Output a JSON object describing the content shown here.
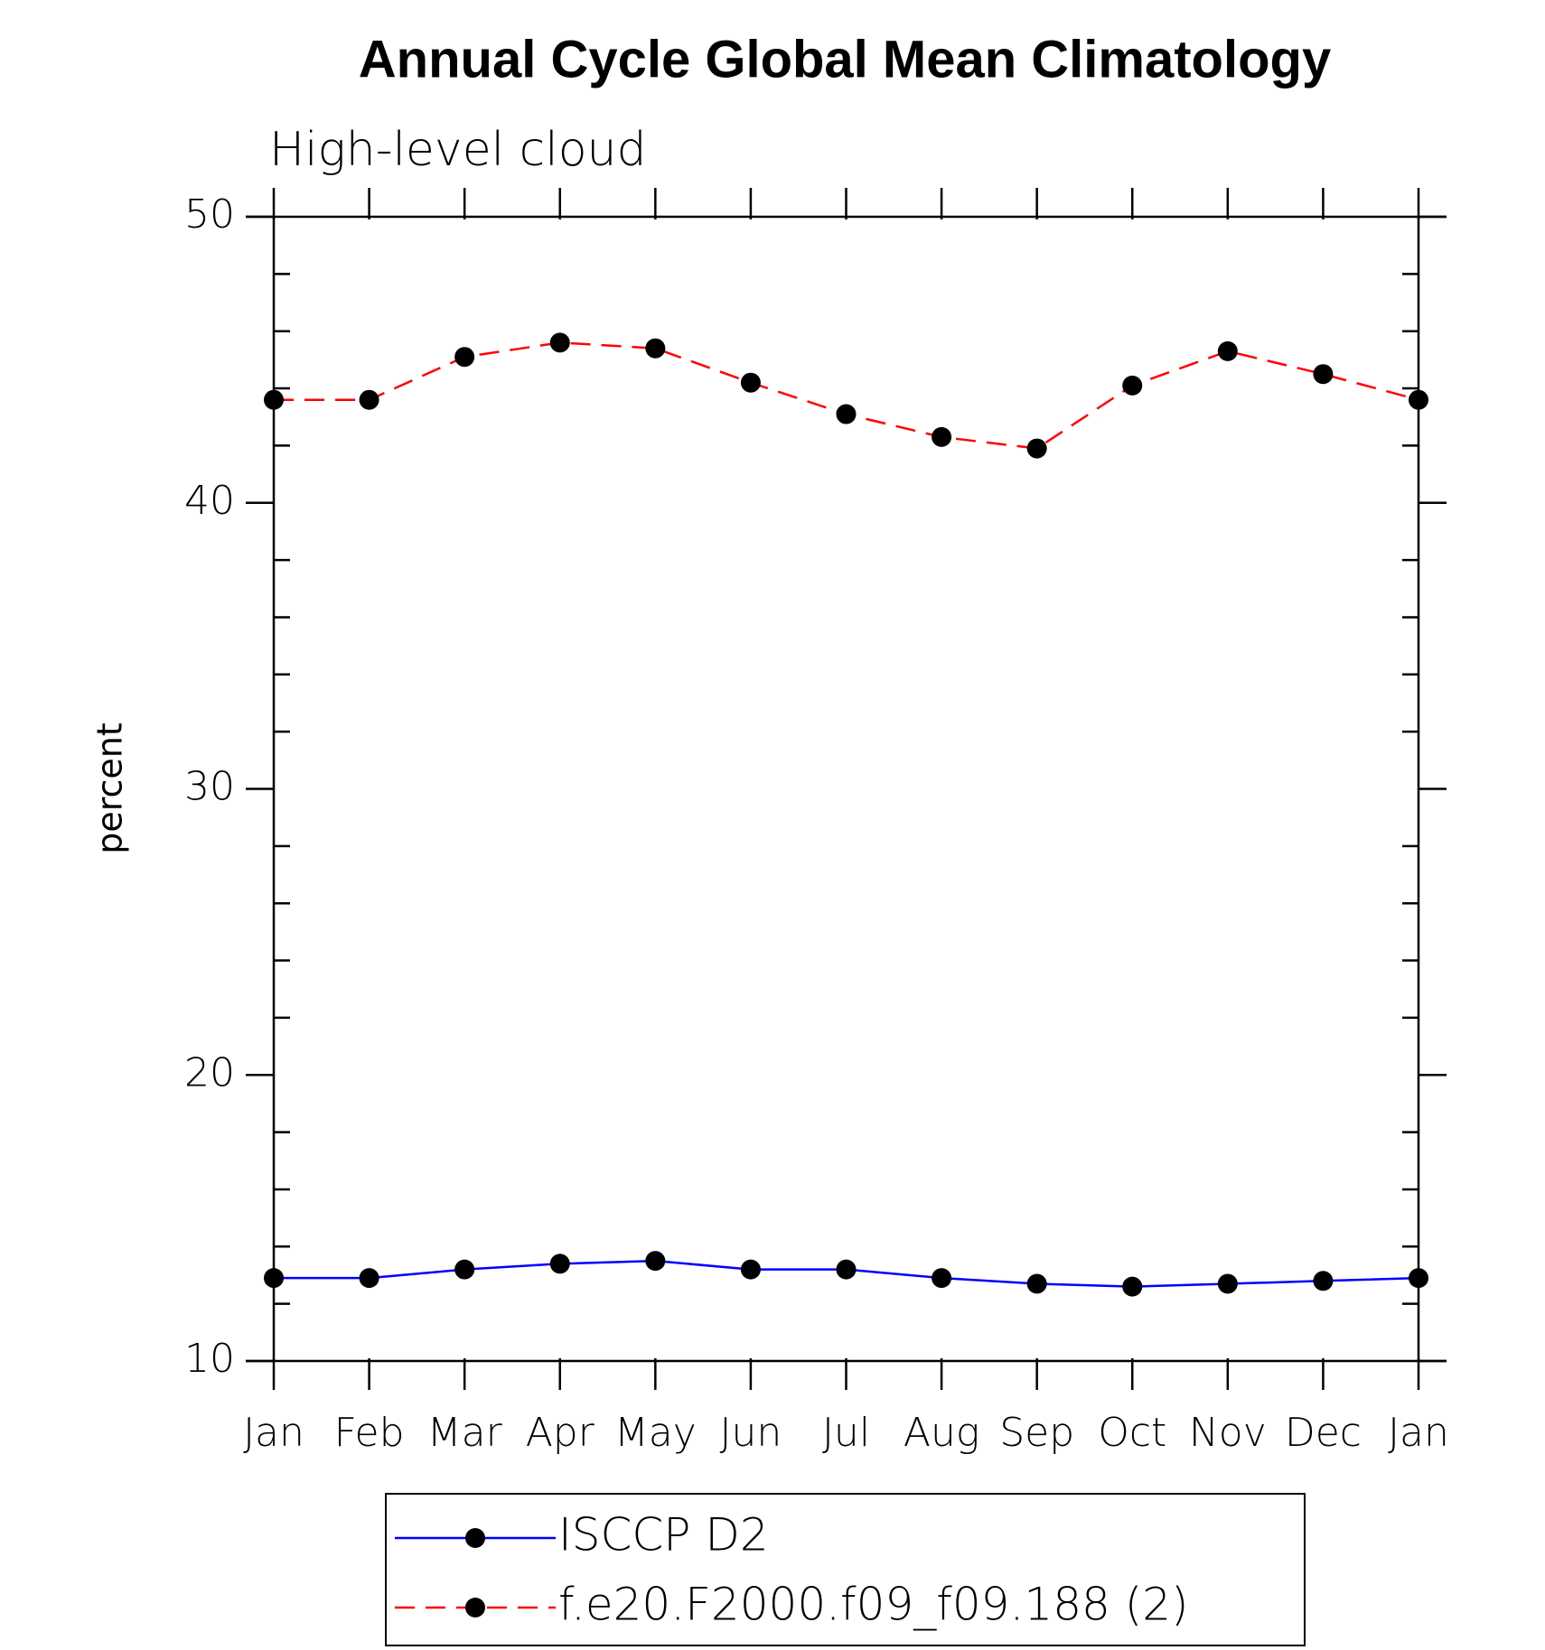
{
  "chart_data": {
    "type": "line",
    "title": "Annual Cycle Global Mean Climatology",
    "subtitle": "High-level cloud",
    "y_label": "percent",
    "categories": [
      "Jan",
      "Feb",
      "Mar",
      "Apr",
      "May",
      "Jun",
      "Jul",
      "Aug",
      "Sep",
      "Oct",
      "Nov",
      "Dec",
      "Jan"
    ],
    "series": [
      {
        "name": "ISCCP D2",
        "color": "#0000ff",
        "dash": "solid",
        "values": [
          12.9,
          12.9,
          13.2,
          13.4,
          13.5,
          13.2,
          13.2,
          12.9,
          12.7,
          12.6,
          12.7,
          12.8,
          12.9
        ]
      },
      {
        "name": "f.e20.F2000.f09_f09.188 (2)",
        "color": "#ff0000",
        "dash": "dashed",
        "values": [
          43.6,
          43.6,
          45.1,
          45.6,
          45.4,
          44.2,
          43.1,
          42.3,
          41.9,
          44.1,
          45.3,
          44.5,
          43.6
        ]
      }
    ],
    "ylim": [
      10,
      50
    ],
    "yticks": [
      10,
      20,
      30,
      40,
      50
    ],
    "grid": false
  }
}
